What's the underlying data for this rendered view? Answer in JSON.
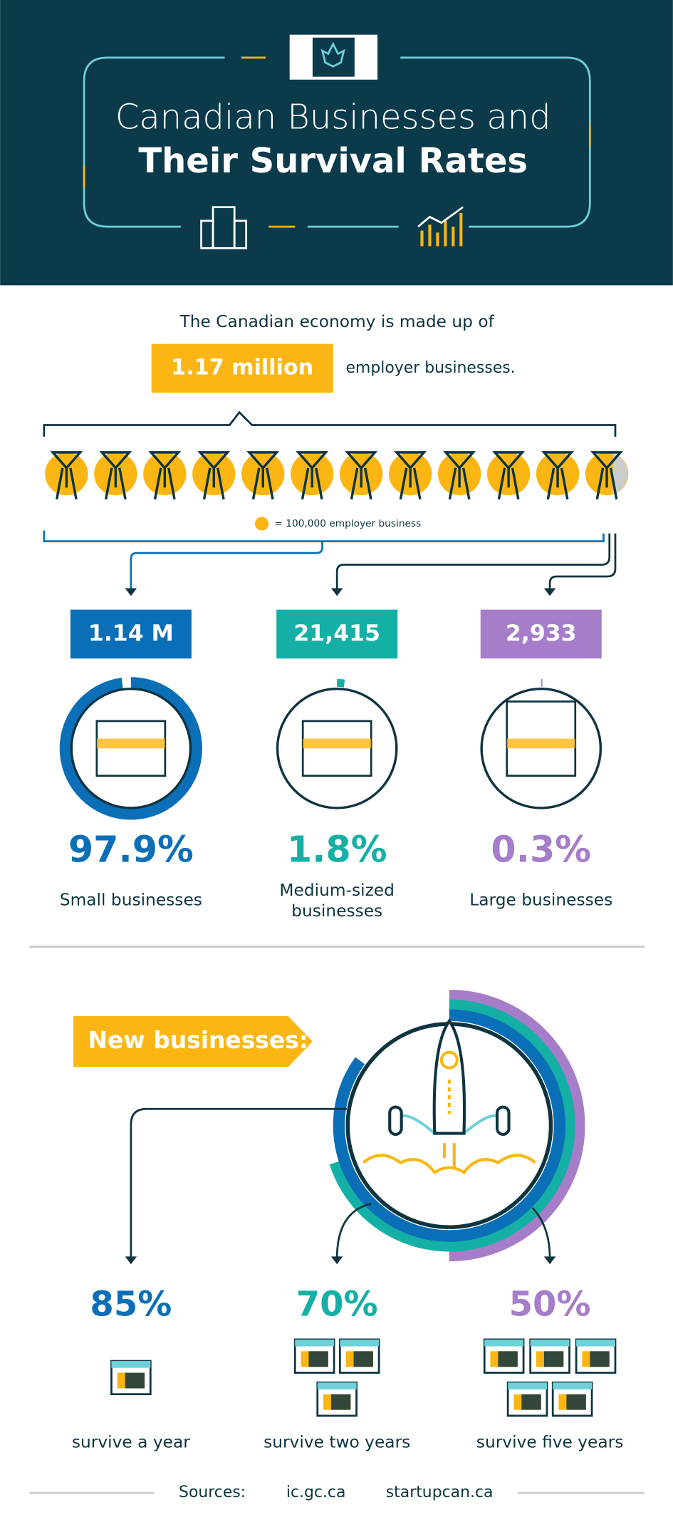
{
  "header": {
    "title_line1": "Canadian Businesses and",
    "title_line2": "Their Survival Rates"
  },
  "economy": {
    "intro": "The Canadian economy is made up of",
    "total": "1.17 million",
    "suffix": "employer businesses.",
    "legend": "= 100,000 employer business"
  },
  "sizes": [
    {
      "count": "1.14 M",
      "share": {
        "value": 97.9,
        "label": "97.9%"
      },
      "label": [
        "Small businesses"
      ],
      "color": "#0b6fb8"
    },
    {
      "count": "21,415",
      "share": {
        "value": 1.8,
        "label": "1.8%"
      },
      "label": [
        "Medium-sized",
        "businesses"
      ],
      "color": "#14b0a5"
    },
    {
      "count": "2,933",
      "share": {
        "value": 0.3,
        "label": "0.3%"
      },
      "label": [
        "Large businesses"
      ],
      "color": "#a57dc8"
    }
  ],
  "survival": {
    "title": "New businesses:",
    "rates": [
      {
        "value": 85,
        "label": "85%",
        "text": "survive a year",
        "color": "#0b6fb8"
      },
      {
        "value": 70,
        "label": "70%",
        "text": "survive two years",
        "color": "#14b0a5"
      },
      {
        "value": 50,
        "label": "50%",
        "text": "survive five years",
        "color": "#a57dc8"
      }
    ]
  },
  "sources": {
    "label": "Sources:",
    "items": [
      "ic.gc.ca",
      "startupcan.ca"
    ]
  }
}
